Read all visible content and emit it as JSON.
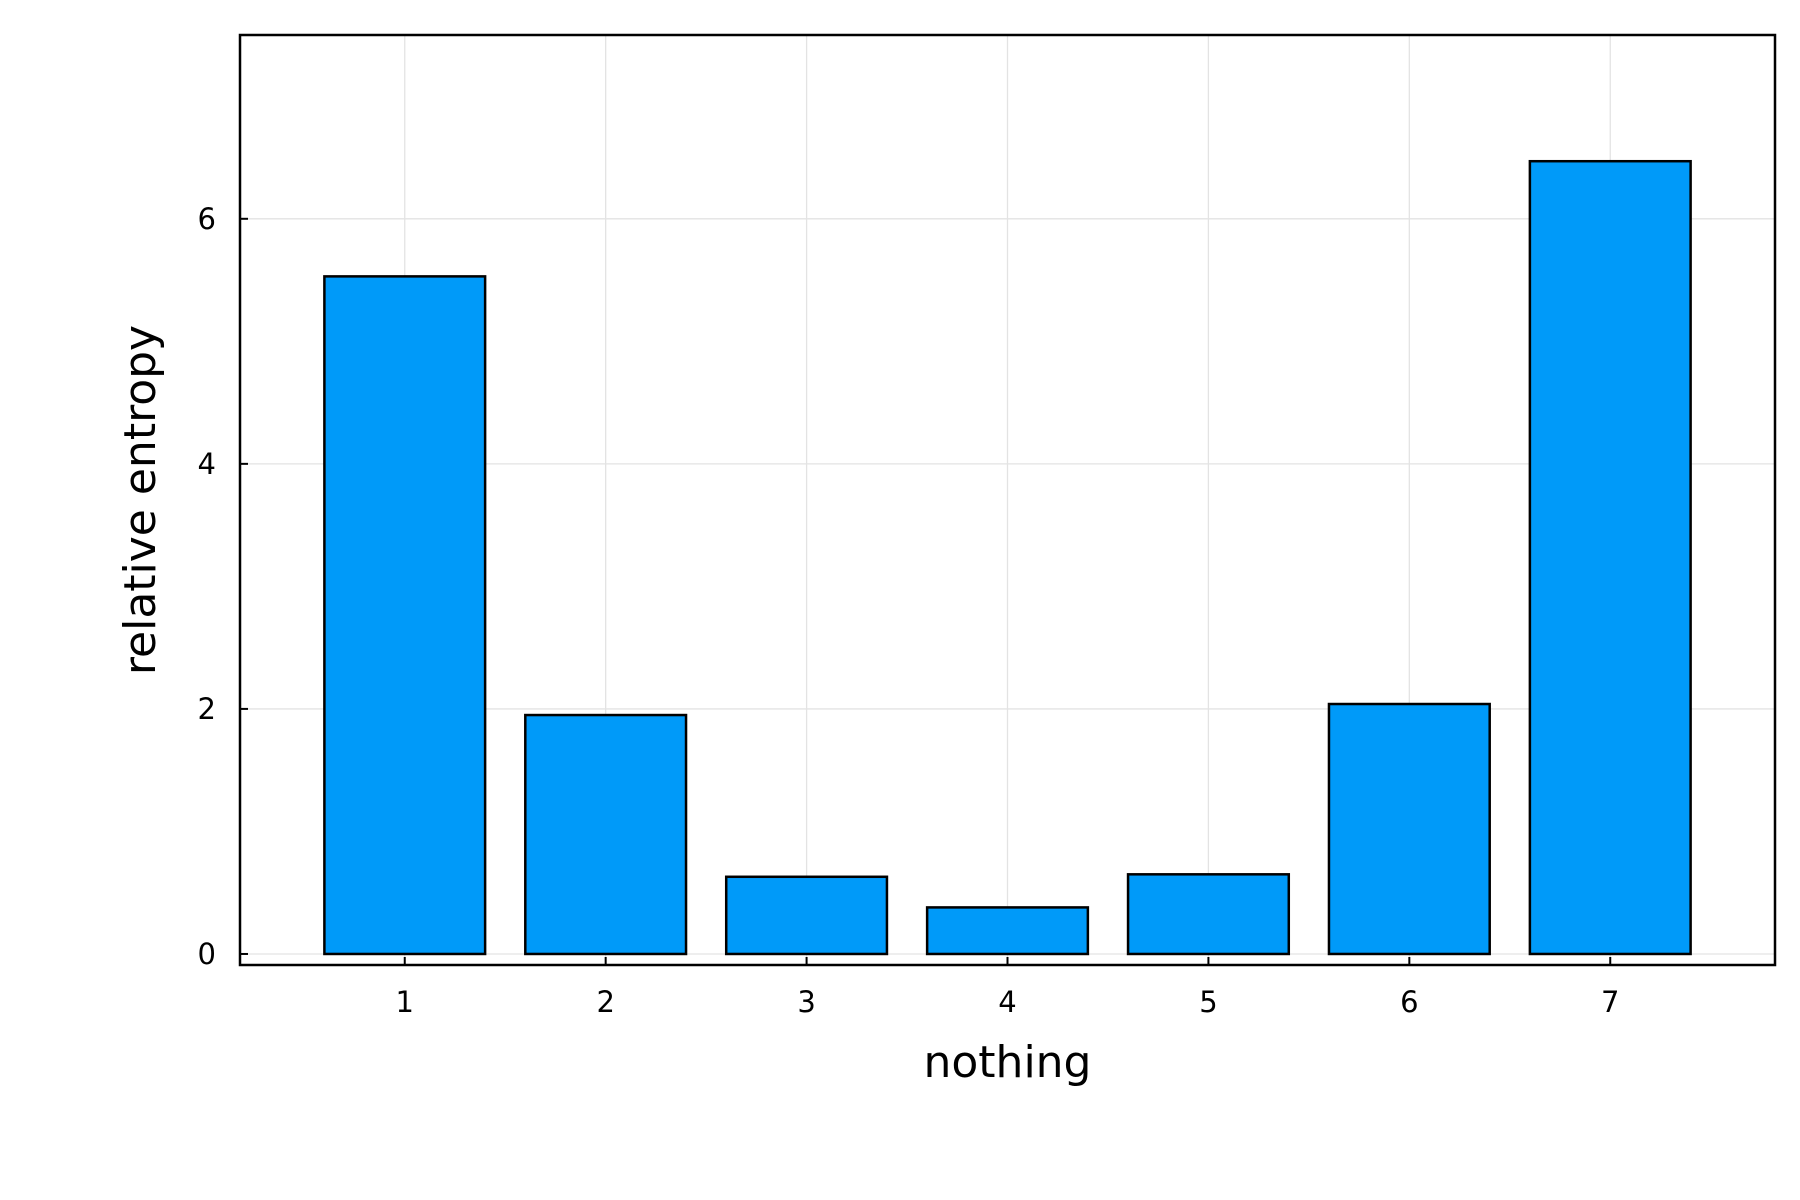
{
  "chart_data": {
    "type": "bar",
    "categories": [
      "1",
      "2",
      "3",
      "4",
      "5",
      "6",
      "7"
    ],
    "values": [
      5.53,
      1.95,
      0.63,
      0.38,
      0.65,
      2.04,
      6.47
    ],
    "title": "",
    "xlabel": "nothing",
    "ylabel": "relative entropy",
    "ylim": [
      -0.09,
      7.5
    ],
    "xlim": [
      0.18,
      7.82
    ],
    "yticks": [
      0,
      2,
      4,
      6
    ],
    "ytick_labels": [
      "0",
      "2",
      "4",
      "6"
    ],
    "grid": true,
    "legend": false,
    "bar_color": "#009af9"
  }
}
